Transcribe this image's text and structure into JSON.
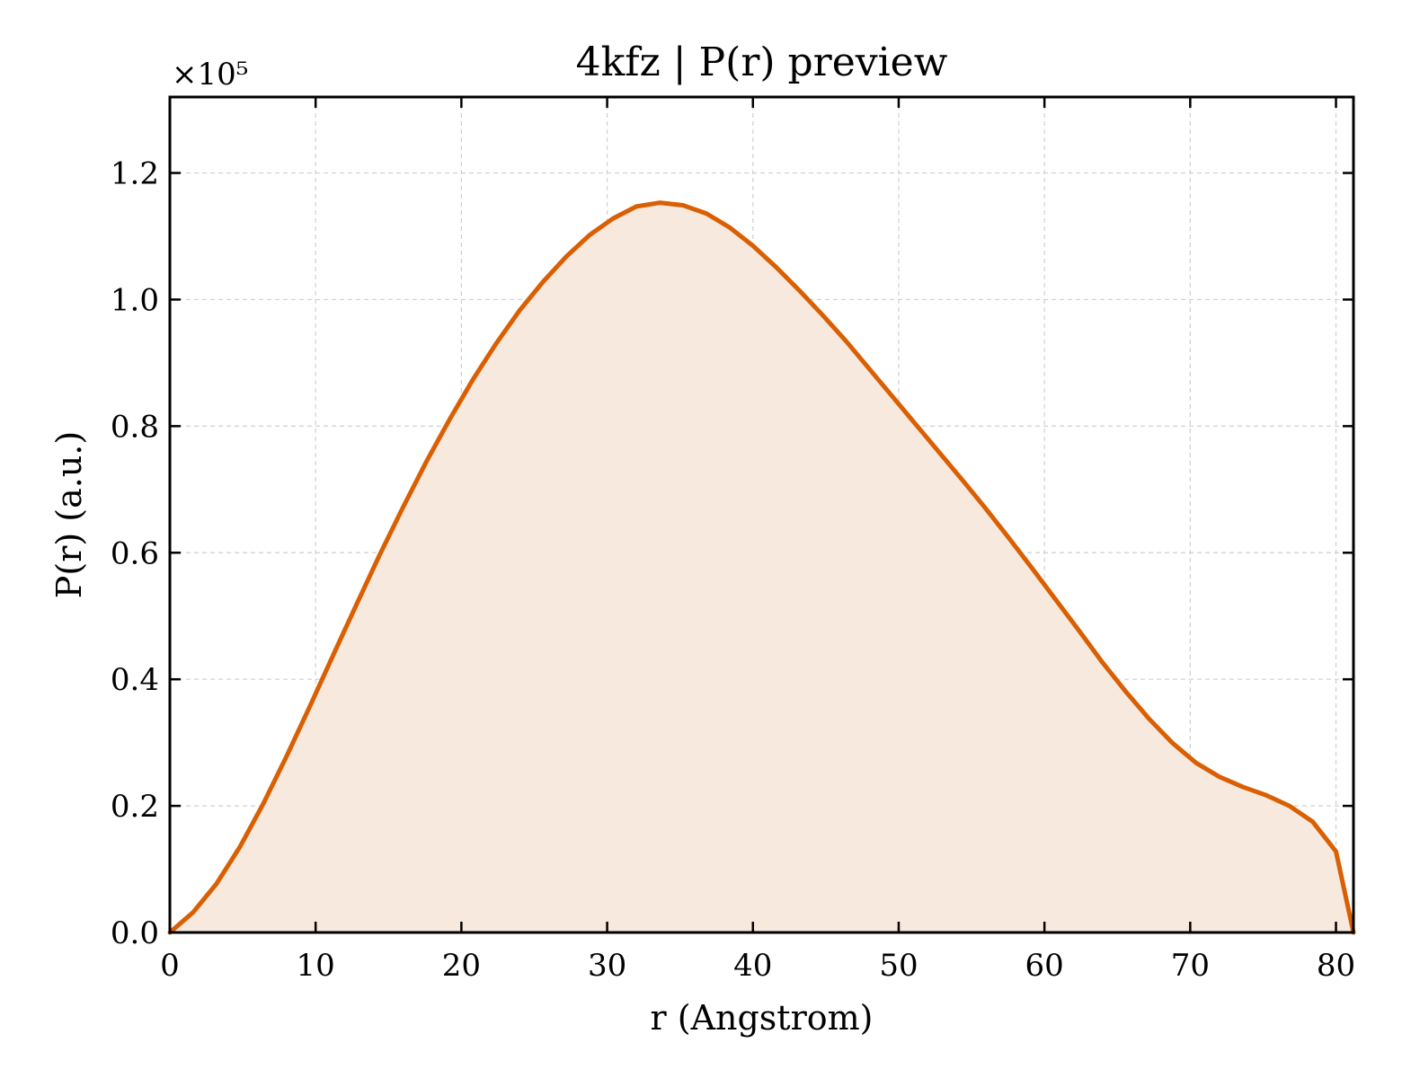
{
  "chart_data": {
    "type": "area",
    "title": "4kfz | P(r) preview",
    "xlabel": "r (Angstrom)",
    "ylabel": "P(r) (a.u.)",
    "y_multiplier": "×10⁵",
    "xlim": [
      0,
      81.2
    ],
    "ylim": [
      0,
      1.32
    ],
    "xticks": [
      0,
      10,
      20,
      30,
      40,
      50,
      60,
      70,
      80
    ],
    "yticks": [
      0.0,
      0.2,
      0.4,
      0.6,
      0.8,
      1.0,
      1.2
    ],
    "xtick_labels": [
      "0",
      "10",
      "20",
      "30",
      "40",
      "50",
      "60",
      "70",
      "80"
    ],
    "ytick_labels": [
      "0.0",
      "0.2",
      "0.4",
      "0.6",
      "0.8",
      "1.0",
      "1.2"
    ],
    "grid": true,
    "line_color": "#d95f02",
    "fill_color": "#f8e9de",
    "series": [
      {
        "x": [
          0,
          1.6,
          3.2,
          4.8,
          6.4,
          8.0,
          9.6,
          11.2,
          12.8,
          14.4,
          16.0,
          17.6,
          19.2,
          20.8,
          22.4,
          24.0,
          25.6,
          27.2,
          28.8,
          30.4,
          32.0,
          33.6,
          35.2,
          36.8,
          38.4,
          40.0,
          41.6,
          43.2,
          44.8,
          46.4,
          48.0,
          49.6,
          51.2,
          52.8,
          54.4,
          56.0,
          57.6,
          59.2,
          60.8,
          62.4,
          64.0,
          65.6,
          67.2,
          68.8,
          70.4,
          72.0,
          73.6,
          75.2,
          76.8,
          78.4,
          80.0,
          81.2
        ],
        "values": [
          0.0,
          0.032,
          0.077,
          0.135,
          0.203,
          0.278,
          0.357,
          0.438,
          0.518,
          0.597,
          0.672,
          0.744,
          0.811,
          0.874,
          0.931,
          0.983,
          1.028,
          1.068,
          1.102,
          1.128,
          1.147,
          1.153,
          1.149,
          1.136,
          1.114,
          1.085,
          1.051,
          1.014,
          0.975,
          0.934,
          0.89,
          0.846,
          0.802,
          0.758,
          0.714,
          0.669,
          0.622,
          0.574,
          0.525,
          0.476,
          0.426,
          0.38,
          0.337,
          0.299,
          0.268,
          0.246,
          0.23,
          0.217,
          0.2,
          0.175,
          0.128,
          0.0
        ]
      }
    ]
  }
}
